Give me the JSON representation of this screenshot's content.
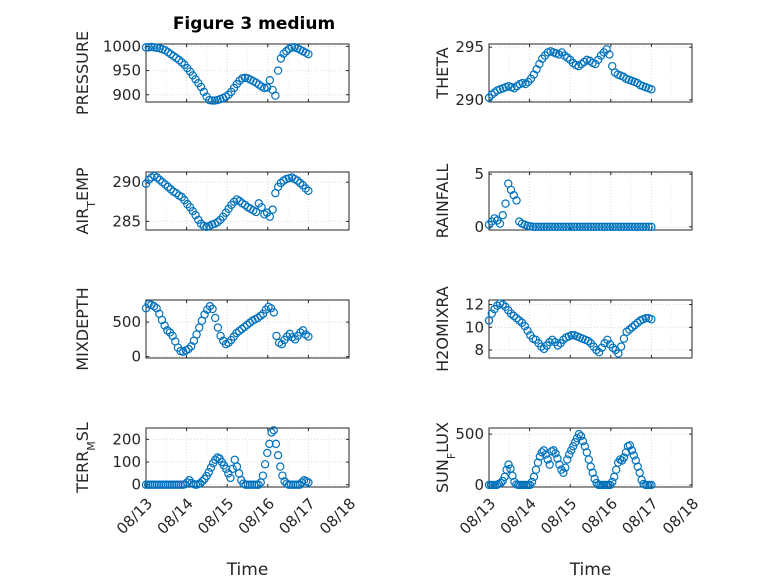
{
  "figure": {
    "title": "Figure 3 medium",
    "marker_color": "#0072BD",
    "axis_color": "#262626",
    "grid_color": "#d9d9d9"
  },
  "chart_data": [
    {
      "type": "scatter",
      "ylabel": "PRESSURE",
      "title": "Figure 3 medium",
      "xlabel": "",
      "ylim": [
        885,
        1005
      ],
      "yticks": [
        900,
        950,
        1000
      ],
      "xticks": [
        "08/13",
        "08/14",
        "08/15",
        "08/16",
        "08/17"
      ],
      "xticklabels_visible": false,
      "x_start": "08/13",
      "x_end": "08/17",
      "y": [
        998,
        998,
        999,
        998,
        997,
        996,
        994,
        992,
        988,
        984,
        980,
        976,
        972,
        967,
        962,
        955,
        948,
        940,
        932,
        924,
        916,
        906,
        896,
        889,
        888,
        888,
        889,
        891,
        893,
        896,
        900,
        906,
        914,
        922,
        929,
        934,
        935,
        934,
        931,
        928,
        925,
        921,
        917,
        914,
        915,
        930,
        910,
        898,
        950,
        975,
        985,
        990,
        995,
        998,
        998,
        996,
        993,
        990,
        987,
        984
      ]
    },
    {
      "type": "scatter",
      "ylabel": "THETA",
      "xlabel": "",
      "ylim": [
        289.8,
        295.3
      ],
      "yticks": [
        290,
        295
      ],
      "xticks": [
        "08/13",
        "08/14",
        "08/15",
        "08/16",
        "08/17"
      ],
      "xticklabels_visible": false,
      "x_start": "08/13",
      "x_end": "08/17",
      "y": [
        290.2,
        290.5,
        290.7,
        290.9,
        291.0,
        291.1,
        291.2,
        291.3,
        291.2,
        291.1,
        291.3,
        291.5,
        291.6,
        291.5,
        291.7,
        292.0,
        292.4,
        292.9,
        293.4,
        293.9,
        294.2,
        294.5,
        294.6,
        294.5,
        294.4,
        294.3,
        294.5,
        294.2,
        294.0,
        293.8,
        293.5,
        293.3,
        293.2,
        293.4,
        293.6,
        293.8,
        293.7,
        293.5,
        293.4,
        293.8,
        294.2,
        294.5,
        294.8,
        294.3,
        293.2,
        292.6,
        292.4,
        292.3,
        292.2,
        292.0,
        291.9,
        291.8,
        291.7,
        291.6,
        291.4,
        291.3,
        291.2,
        291.1,
        291.0
      ]
    },
    {
      "type": "scatter",
      "ylabel": "AIR_TEMP",
      "xlabel": "",
      "ylim": [
        283.9,
        291.3
      ],
      "yticks": [
        285,
        290
      ],
      "xticks": [
        "08/13",
        "08/14",
        "08/15",
        "08/16",
        "08/17"
      ],
      "xticklabels_visible": false,
      "x_start": "08/13",
      "x_end": "08/17",
      "y": [
        289.8,
        290.3,
        290.6,
        290.8,
        290.6,
        290.3,
        290.0,
        289.7,
        289.4,
        289.1,
        288.8,
        288.6,
        288.3,
        288.1,
        287.7,
        287.2,
        286.8,
        286.3,
        285.8,
        285.2,
        284.7,
        284.4,
        284.3,
        284.4,
        284.6,
        284.7,
        284.9,
        285.2,
        285.6,
        286.1,
        286.6,
        287.1,
        287.5,
        287.8,
        287.6,
        287.3,
        287.1,
        286.8,
        286.6,
        286.4,
        286.2,
        287.3,
        286.8,
        285.9,
        286.1,
        285.6,
        286.5,
        288.6,
        289.4,
        289.9,
        290.2,
        290.4,
        290.5,
        290.6,
        290.4,
        290.2,
        289.9,
        289.6,
        289.2,
        288.9
      ]
    },
    {
      "type": "scatter",
      "ylabel": "RAINFALL",
      "xlabel": "",
      "ylim": [
        -0.3,
        5.2
      ],
      "yticks": [
        0,
        5
      ],
      "xticks": [
        "08/13",
        "08/14",
        "08/15",
        "08/16",
        "08/17"
      ],
      "xticklabels_visible": false,
      "x_start": "08/13",
      "x_end": "08/17",
      "y": [
        0.2,
        0.5,
        0.8,
        0.6,
        0.3,
        1.1,
        2.2,
        4.1,
        3.5,
        3.0,
        2.5,
        0.5,
        0.3,
        0.2,
        0.1,
        0.05,
        0,
        0,
        0,
        0,
        0,
        0,
        0,
        0,
        0,
        0,
        0,
        0,
        0,
        0,
        0,
        0,
        0,
        0,
        0,
        0,
        0,
        0,
        0,
        0,
        0,
        0,
        0,
        0,
        0,
        0,
        0,
        0,
        0,
        0,
        0,
        0,
        0,
        0,
        0,
        0,
        0,
        0,
        0,
        0
      ]
    },
    {
      "type": "scatter",
      "ylabel": "MIXDEPTH",
      "xlabel": "",
      "ylim": [
        -20,
        820
      ],
      "yticks": [
        0,
        500
      ],
      "xticks": [
        "08/13",
        "08/14",
        "08/15",
        "08/16",
        "08/17"
      ],
      "xticklabels_visible": false,
      "x_start": "08/13",
      "x_end": "08/17",
      "y": [
        700,
        760,
        750,
        730,
        700,
        620,
        530,
        450,
        380,
        350,
        300,
        220,
        130,
        80,
        70,
        90,
        110,
        150,
        230,
        320,
        420,
        520,
        610,
        680,
        730,
        690,
        560,
        420,
        300,
        230,
        180,
        200,
        240,
        290,
        340,
        370,
        400,
        430,
        460,
        490,
        520,
        540,
        560,
        590,
        620,
        680,
        720,
        700,
        640,
        300,
        200,
        180,
        240,
        290,
        330,
        280,
        250,
        300,
        350,
        380,
        320,
        290
      ]
    },
    {
      "type": "scatter",
      "ylabel": "H2OMIXRA",
      "xlabel": "",
      "ylim": [
        7.3,
        12.4
      ],
      "yticks": [
        8,
        10,
        12
      ],
      "xticks": [
        "08/13",
        "08/14",
        "08/15",
        "08/16",
        "08/17"
      ],
      "xticklabels_visible": false,
      "x_start": "08/13",
      "x_end": "08/17",
      "y": [
        10.6,
        11.2,
        11.6,
        11.9,
        12.1,
        12.0,
        11.8,
        11.5,
        11.2,
        11.0,
        10.8,
        10.6,
        10.4,
        10.1,
        9.7,
        9.3,
        9.0,
        8.9,
        8.6,
        8.3,
        8.1,
        8.4,
        8.7,
        8.9,
        8.7,
        8.4,
        8.6,
        8.9,
        9.1,
        9.2,
        9.3,
        9.3,
        9.2,
        9.1,
        9.0,
        8.9,
        8.8,
        8.6,
        8.3,
        8.0,
        7.8,
        8.2,
        8.6,
        8.9,
        8.5,
        8.2,
        8.0,
        7.7,
        8.3,
        9.0,
        9.6,
        9.8,
        10.0,
        10.2,
        10.4,
        10.6,
        10.7,
        10.8,
        10.8,
        10.7
      ]
    },
    {
      "type": "scatter",
      "ylabel": "TERR_MSL",
      "xlabel": "Time",
      "ylim": [
        -10,
        250
      ],
      "yticks": [
        0,
        100,
        200
      ],
      "xticks": [
        "08/13",
        "08/14",
        "08/15",
        "08/16",
        "08/17",
        "08/18"
      ],
      "xticklabels_visible": true,
      "x_start": "08/13",
      "x_end": "08/18",
      "y": [
        0,
        0,
        0,
        0,
        0,
        0,
        0,
        0,
        0,
        0,
        0,
        0,
        0,
        0,
        0,
        0,
        0,
        0,
        2,
        10,
        20,
        8,
        3,
        0,
        2,
        6,
        15,
        25,
        38,
        55,
        75,
        95,
        110,
        120,
        115,
        100,
        85,
        70,
        50,
        30,
        70,
        110,
        80,
        50,
        20,
        5,
        0,
        0,
        0,
        0,
        0,
        0,
        0,
        10,
        40,
        90,
        140,
        180,
        230,
        240,
        180,
        130,
        80,
        40,
        15,
        5,
        0,
        0,
        0,
        0,
        0,
        0,
        10,
        20,
        15,
        10
      ]
    },
    {
      "type": "scatter",
      "ylabel": "SUN_FLUX",
      "xlabel": "Time",
      "ylim": [
        -20,
        560
      ],
      "yticks": [
        0,
        500
      ],
      "xticks": [
        "08/13",
        "08/14",
        "08/15",
        "08/16",
        "08/17",
        "08/18"
      ],
      "xticklabels_visible": true,
      "x_start": "08/13",
      "x_end": "08/18",
      "y": [
        0,
        0,
        0,
        0,
        0,
        10,
        20,
        40,
        80,
        150,
        200,
        160,
        90,
        30,
        5,
        0,
        0,
        0,
        0,
        0,
        0,
        0,
        30,
        80,
        150,
        220,
        280,
        320,
        340,
        300,
        250,
        200,
        330,
        340,
        310,
        260,
        200,
        150,
        120,
        170,
        250,
        300,
        340,
        380,
        420,
        460,
        500,
        480,
        430,
        380,
        320,
        250,
        180,
        120,
        60,
        20,
        0,
        0,
        0,
        0,
        0,
        0,
        0,
        30,
        80,
        150,
        220,
        250,
        240,
        270,
        320,
        380,
        390,
        340,
        290,
        240,
        180,
        120,
        50,
        10,
        0,
        0,
        0,
        0
      ]
    }
  ]
}
